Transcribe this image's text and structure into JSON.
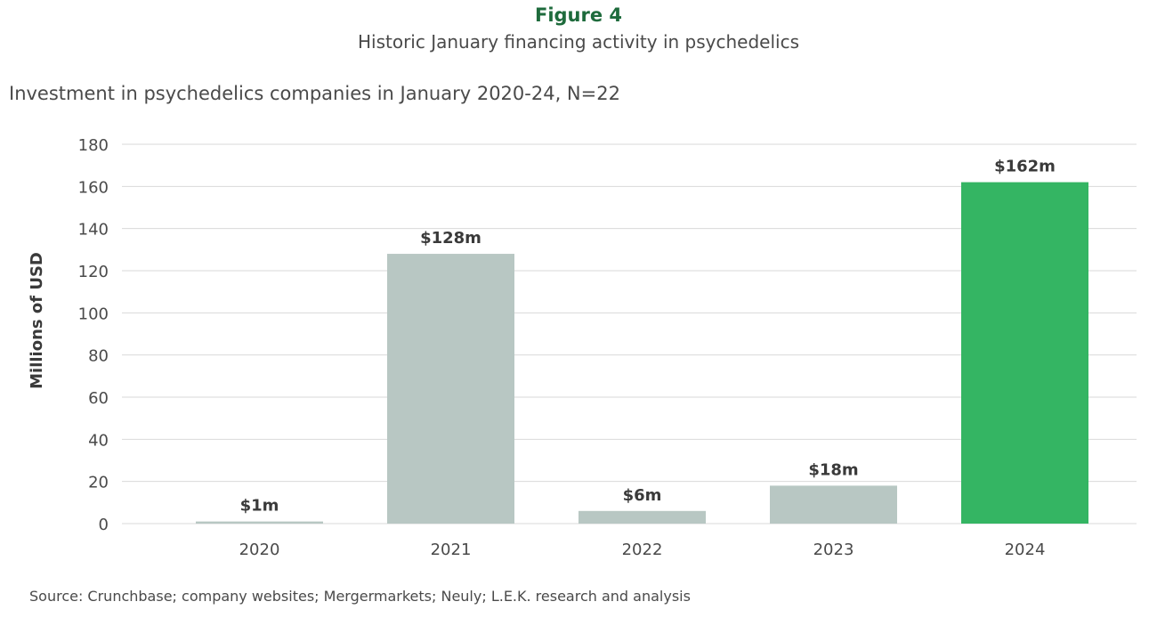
{
  "header": {
    "figure_label": "Figure 4",
    "figure_title": "Historic January financing activity in psychedelics"
  },
  "chart_data": {
    "type": "bar",
    "title": "Investment in psychedelics companies in January 2020-24, N=22",
    "xlabel": "",
    "ylabel": "Millions of USD",
    "categories": [
      "2020",
      "2021",
      "2022",
      "2023",
      "2024"
    ],
    "values": [
      1,
      128,
      6,
      18,
      162
    ],
    "data_labels": [
      "$1m",
      "$128m",
      "$6m",
      "$18m",
      "$162m"
    ],
    "ylim": [
      0,
      180
    ],
    "yticks": [
      0,
      20,
      40,
      60,
      80,
      100,
      120,
      140,
      160,
      180
    ],
    "grid": true,
    "legend": "none",
    "colors": {
      "default_bar": "#b8c7c3",
      "highlight_bar": "#34b563",
      "highlight_category": "2024"
    }
  },
  "footer": {
    "source": "Source: Crunchbase; company websites; Mergermarkets; Neuly; L.E.K. research and analysis"
  }
}
